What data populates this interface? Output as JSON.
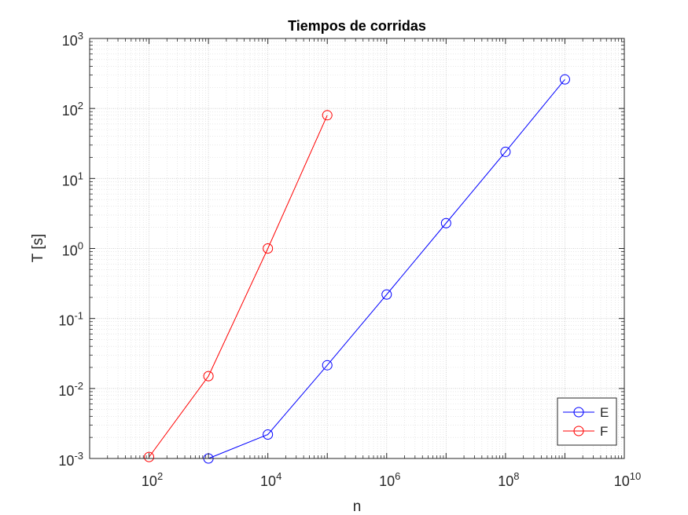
{
  "chart_data": {
    "type": "line",
    "title": "Tiempos de corridas",
    "xlabel": "n",
    "ylabel": "T [s]",
    "xscale": "log",
    "yscale": "log",
    "xlim": [
      10,
      10000000000
    ],
    "ylim": [
      0.001,
      1000
    ],
    "grid": true,
    "minor_grid": true,
    "x_ticks": [
      {
        "value": 100,
        "base": "10",
        "exp": "2"
      },
      {
        "value": 10000,
        "base": "10",
        "exp": "4"
      },
      {
        "value": 1000000,
        "base": "10",
        "exp": "6"
      },
      {
        "value": 100000000,
        "base": "10",
        "exp": "8"
      },
      {
        "value": 10000000000,
        "base": "10",
        "exp": "10"
      }
    ],
    "y_ticks": [
      {
        "value": 0.001,
        "base": "10",
        "exp": "-3"
      },
      {
        "value": 0.01,
        "base": "10",
        "exp": "-2"
      },
      {
        "value": 0.1,
        "base": "10",
        "exp": "-1"
      },
      {
        "value": 1,
        "base": "10",
        "exp": "0"
      },
      {
        "value": 10,
        "base": "10",
        "exp": "1"
      },
      {
        "value": 100,
        "base": "10",
        "exp": "2"
      },
      {
        "value": 1000,
        "base": "10",
        "exp": "3"
      }
    ],
    "legend_position": "bottom-right",
    "series": [
      {
        "name": "E",
        "color": "#0000ff",
        "marker": "circle",
        "x": [
          1000,
          10000,
          100000,
          1000000,
          10000000,
          100000000,
          1000000000
        ],
        "y": [
          0.001,
          0.0022,
          0.0215,
          0.22,
          2.3,
          24,
          260
        ]
      },
      {
        "name": "F",
        "color": "#ff0000",
        "marker": "circle",
        "x": [
          100,
          1000,
          10000,
          100000
        ],
        "y": [
          0.00105,
          0.015,
          1.0,
          80
        ]
      }
    ]
  }
}
